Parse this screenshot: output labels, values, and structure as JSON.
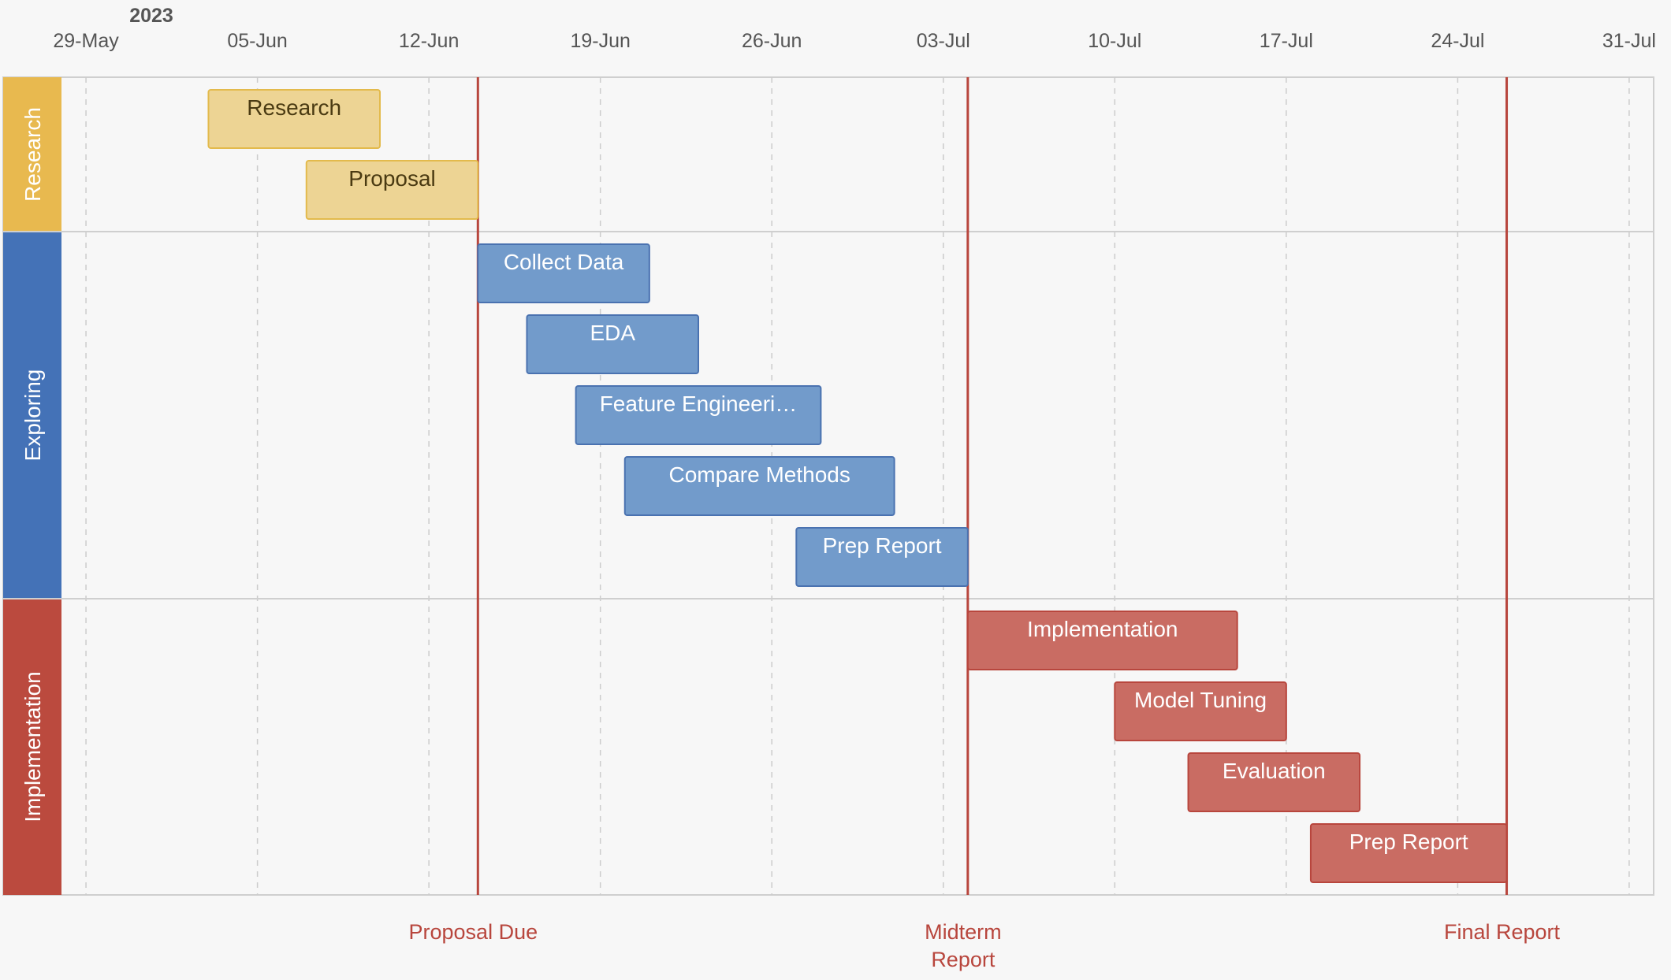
{
  "chart_data": {
    "type": "gantt",
    "year_label": "2023",
    "x_ticks": [
      {
        "date": "2023-05-29",
        "label": "29-May"
      },
      {
        "date": "2023-06-05",
        "label": "05-Jun"
      },
      {
        "date": "2023-06-12",
        "label": "12-Jun"
      },
      {
        "date": "2023-06-19",
        "label": "19-Jun"
      },
      {
        "date": "2023-06-26",
        "label": "26-Jun"
      },
      {
        "date": "2023-07-03",
        "label": "03-Jul"
      },
      {
        "date": "2023-07-10",
        "label": "10-Jul"
      },
      {
        "date": "2023-07-17",
        "label": "17-Jul"
      },
      {
        "date": "2023-07-24",
        "label": "24-Jul"
      },
      {
        "date": "2023-07-31",
        "label": "31-Jul"
      }
    ],
    "x_range": [
      "2023-05-28",
      "2023-08-01"
    ],
    "grid": true,
    "groups": [
      {
        "name": "Research",
        "color": "#e8b94f",
        "bar_fill": "#edd494",
        "bar_stroke": "#e3ba4c",
        "text_color": "#4a3a12",
        "tasks": [
          {
            "label": "Research",
            "start": "2023-06-03",
            "end": "2023-06-10"
          },
          {
            "label": "Proposal",
            "start": "2023-06-07",
            "end": "2023-06-14"
          }
        ]
      },
      {
        "name": "Exploring",
        "color": "#4472b7",
        "bar_fill": "#729bcb",
        "bar_stroke": "#4a72b0",
        "text_color": "#ffffff",
        "tasks": [
          {
            "label": "Collect Data",
            "start": "2023-06-14",
            "end": "2023-06-21"
          },
          {
            "label": "EDA",
            "start": "2023-06-16",
            "end": "2023-06-23"
          },
          {
            "label": "Feature Engineeri…",
            "start": "2023-06-18",
            "end": "2023-06-28"
          },
          {
            "label": "Compare Methods",
            "start": "2023-06-20",
            "end": "2023-07-01"
          },
          {
            "label": "Prep Report",
            "start": "2023-06-27",
            "end": "2023-07-04"
          }
        ]
      },
      {
        "name": "Implementation",
        "color": "#bb4a3e",
        "bar_fill": "#c96c63",
        "bar_stroke": "#b8463d",
        "text_color": "#ffffff",
        "tasks": [
          {
            "label": "Implementation",
            "start": "2023-07-04",
            "end": "2023-07-15"
          },
          {
            "label": "Model Tuning",
            "start": "2023-07-10",
            "end": "2023-07-17"
          },
          {
            "label": "Evaluation",
            "start": "2023-07-13",
            "end": "2023-07-20"
          },
          {
            "label": "Prep Report",
            "start": "2023-07-18",
            "end": "2023-07-26"
          }
        ]
      }
    ],
    "milestones": [
      {
        "label": [
          "Proposal Due"
        ],
        "date": "2023-06-14"
      },
      {
        "label": [
          "Midterm",
          "Report"
        ],
        "date": "2023-07-04"
      },
      {
        "label": [
          "Final Report"
        ],
        "date": "2023-07-26"
      }
    ],
    "milestone_color": "#b8463d"
  }
}
